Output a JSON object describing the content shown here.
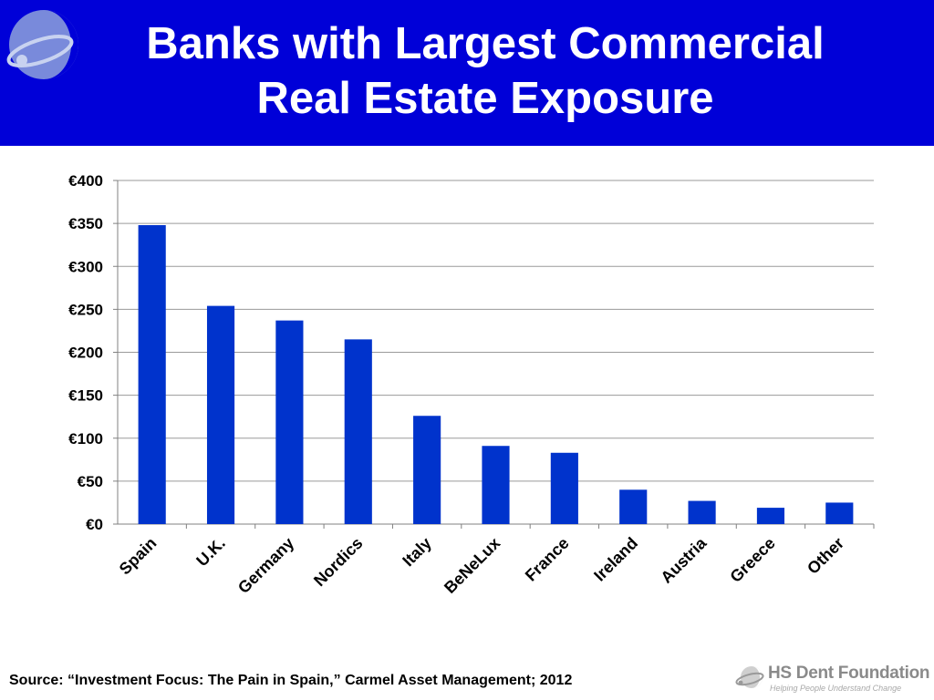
{
  "slide": {
    "title_line1": "Banks with Largest Commercial",
    "title_line2": "Real Estate Exposure",
    "source": "Source: “Investment Focus: The Pain in Spain,” Carmel Asset Management; 2012",
    "logo_name": "HS Dent Foundation",
    "logo_tagline": "Helping People Understand Change",
    "banner_color": "#0000d8"
  },
  "chart_data": {
    "type": "bar",
    "title": "",
    "xlabel": "",
    "ylabel": "",
    "categories": [
      "Spain",
      "U.K.",
      "Germany",
      "Nordics",
      "Italy",
      "BeNeLux",
      "France",
      "Ireland",
      "Austria",
      "Greece",
      "Other"
    ],
    "values": [
      348,
      254,
      237,
      215,
      126,
      91,
      83,
      40,
      27,
      19,
      25
    ],
    "ylim": [
      0,
      400
    ],
    "yticks": [
      0,
      50,
      100,
      150,
      200,
      250,
      300,
      350,
      400
    ],
    "ytick_labels": [
      "€0",
      "€50",
      "€100",
      "€150",
      "€200",
      "€250",
      "€300",
      "€350",
      "€400"
    ],
    "bar_color": "#0033cc",
    "grid": true,
    "legend": "none"
  }
}
